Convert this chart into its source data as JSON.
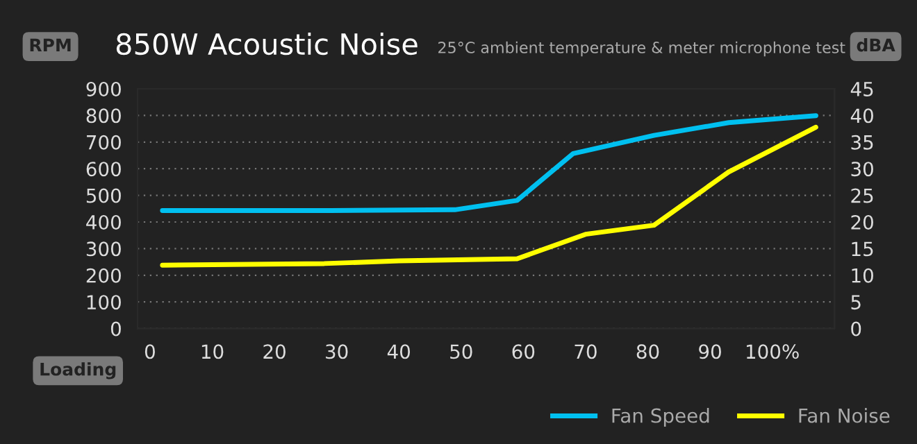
{
  "chart_data": {
    "type": "line",
    "title": "850W Acoustic Noise",
    "subtitle": "25°C ambient temperature & meter microphone test",
    "xlabel": "Loading",
    "ylabel": "RPM",
    "y2label": "dBA",
    "xlim": [
      -2,
      110
    ],
    "xticks": [
      0,
      10,
      20,
      30,
      40,
      50,
      60,
      70,
      80,
      90,
      {
        "value": 100,
        "label": "100%"
      }
    ],
    "ylim": [
      0,
      900
    ],
    "yticks": [
      0,
      100,
      200,
      300,
      400,
      500,
      600,
      700,
      800,
      900
    ],
    "y2lim": [
      0,
      45
    ],
    "y2ticks": [
      0,
      5,
      10,
      15,
      20,
      25,
      30,
      35,
      40,
      45
    ],
    "grid": "y",
    "legend": "bottom right",
    "marker": "none",
    "line_style": "solid",
    "series": [
      {
        "name": "Fan Speed",
        "color": "#00c0f0",
        "x": [
          2,
          29,
          49,
          59,
          68,
          81,
          93,
          107
        ],
        "values": [
          443,
          443,
          446,
          481,
          657,
          725,
          773,
          799
        ]
      },
      {
        "name": "Fan Noise",
        "color": "#ffff00",
        "axis": "y2",
        "x": [
          2,
          28,
          40,
          59,
          70,
          81,
          93,
          107
        ],
        "values": [
          11.9,
          12.2,
          12.7,
          13.1,
          17.7,
          19.4,
          29.4,
          37.8
        ]
      }
    ]
  }
}
